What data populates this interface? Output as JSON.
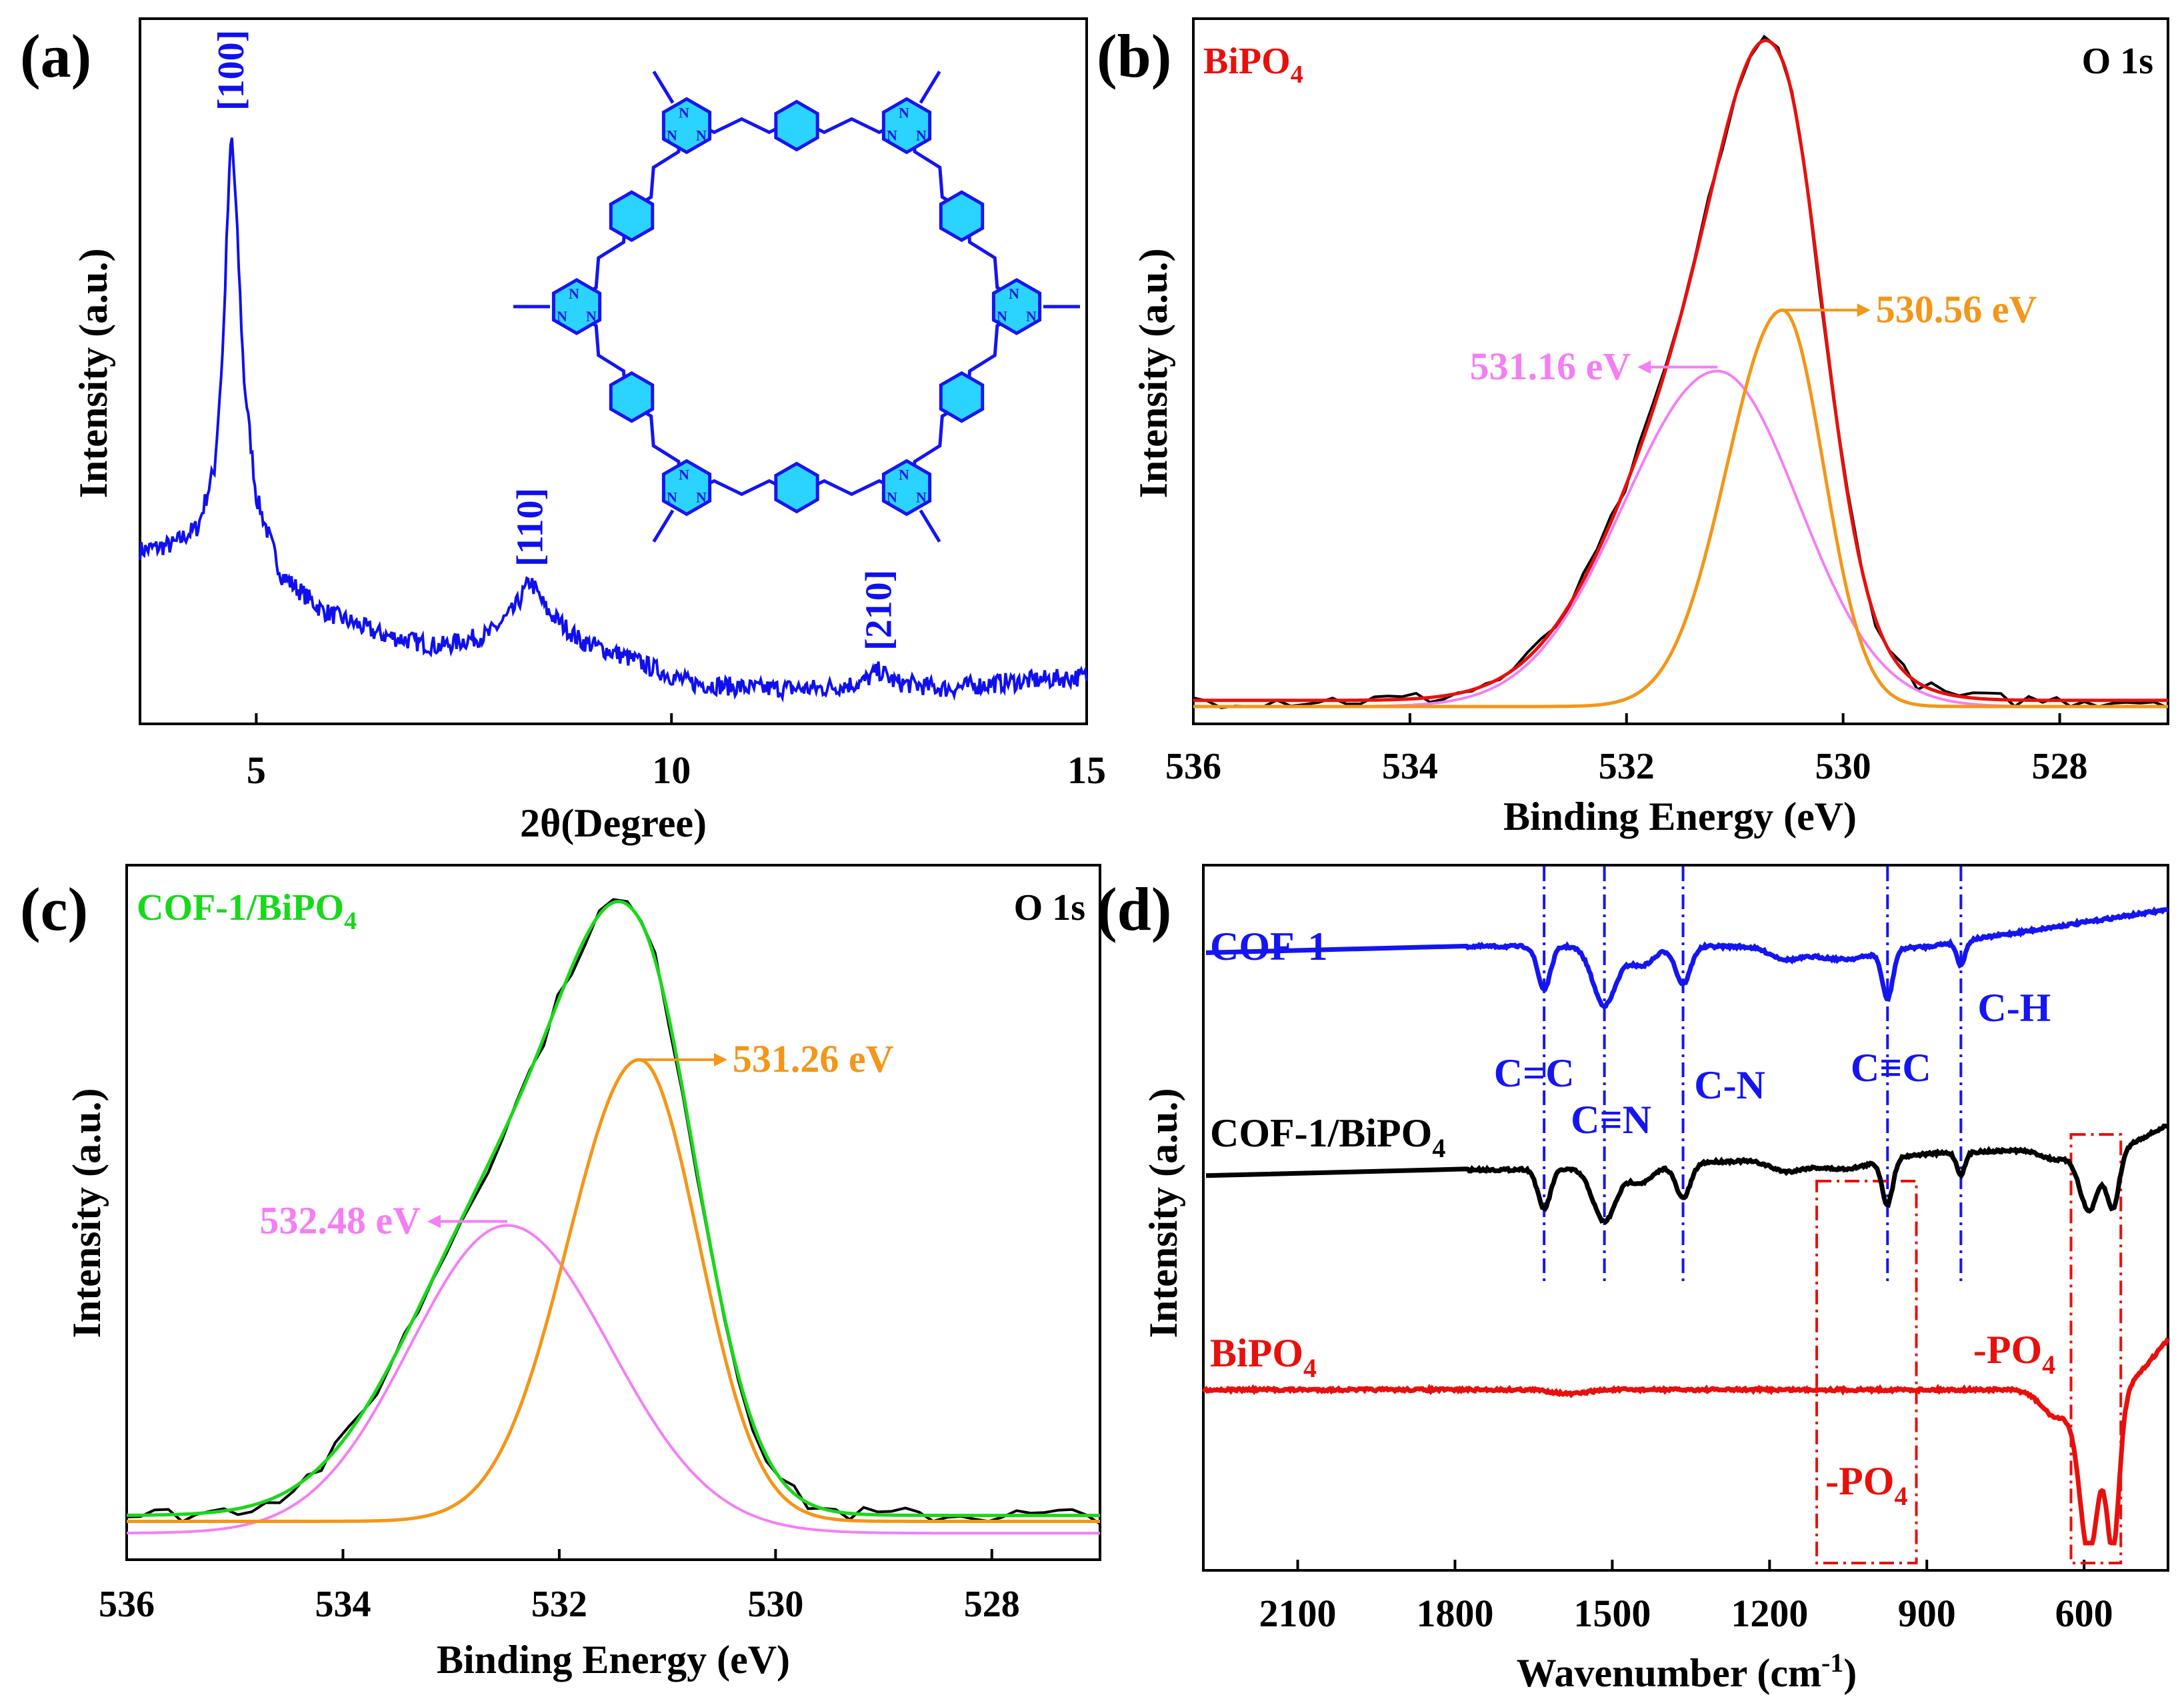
{
  "chart_data": [
    {
      "panel": "(a)",
      "type": "line",
      "xlabel": "2θ(Degree)",
      "ylabel": "Intensity (a.u.)",
      "xlim": [
        3.6,
        15
      ],
      "ylim": [
        0,
        100
      ],
      "xticks": [
        5,
        10,
        15
      ],
      "grid": false,
      "line_color": "#1010ee",
      "peaks": [
        {
          "label": "[100]",
          "x": 4.7,
          "height": 96
        },
        {
          "label": "[110]",
          "x": 8.3,
          "height": 20
        },
        {
          "label": "[210]",
          "x": 12.5,
          "height": 6
        }
      ],
      "series": [
        {
          "x": [
            3.6,
            4.0,
            4.3,
            4.5,
            4.6,
            4.65,
            4.7,
            4.75,
            4.85,
            5.0,
            5.3,
            5.8,
            6.5,
            7.2,
            7.8,
            8.1,
            8.3,
            8.5,
            8.9,
            9.5,
            10.2,
            11.0,
            11.8,
            12.3,
            12.5,
            12.7,
            13.3,
            14.0,
            15.0
          ],
          "y": [
            26,
            27,
            30,
            40,
            60,
            80,
            96,
            85,
            55,
            35,
            22,
            16,
            12,
            10,
            12,
            16,
            21,
            16,
            11,
            8,
            4,
            3,
            3,
            4,
            6,
            4,
            3,
            4,
            5
          ]
        }
      ],
      "inset": "hexagonal COF-1 framework structure (triazine nodes linked by vinylene–phenylene–vinylene)"
    },
    {
      "panel": "(b)",
      "type": "line",
      "title": "BiPO4",
      "title_display": "BiPO₄",
      "annotation": "O 1s",
      "xlabel": "Binding Energy (eV)",
      "ylabel": "Intensity (a.u.)",
      "xlim": [
        536,
        527
      ],
      "xticks": [
        536,
        534,
        532,
        530,
        528
      ],
      "series": [
        {
          "name": "measured",
          "color": "#000000",
          "peak_center": 530.72,
          "peak_height": 100
        },
        {
          "name": "fit envelope",
          "color": "#e8100c",
          "peak_center": 530.72,
          "peak_height": 100
        },
        {
          "name": "531.16 eV",
          "color": "#f47ef4",
          "peak_center": 531.16,
          "peak_height": 55
        },
        {
          "name": "530.56 eV",
          "color": "#f39619",
          "peak_center": 530.56,
          "peak_height": 65
        }
      ],
      "labels": [
        "531.16 eV",
        "530.56 eV"
      ]
    },
    {
      "panel": "(c)",
      "type": "line",
      "title": "COF-1/BiPO4",
      "title_display": "COF-1/BiPO₄",
      "annotation": "O 1s",
      "xlabel": "Binding Energy (eV)",
      "ylabel": "Intensity (a.u.)",
      "xlim": [
        536,
        527
      ],
      "xticks": [
        536,
        534,
        532,
        530,
        528
      ],
      "series": [
        {
          "name": "measured",
          "color": "#000000",
          "peak_center": 531.5,
          "peak_height": 100
        },
        {
          "name": "fit envelope",
          "color": "#19d81b",
          "peak_center": 531.5,
          "peak_height": 100
        },
        {
          "name": "532.48 eV",
          "color": "#f47ef4",
          "peak_center": 532.48,
          "peak_height": 52
        },
        {
          "name": "531.26 eV",
          "color": "#f39619",
          "peak_center": 531.26,
          "peak_height": 78
        }
      ],
      "labels": [
        "532.48 eV",
        "531.26 eV"
      ]
    },
    {
      "panel": "(d)",
      "type": "line",
      "xlabel": "Wavenumber (cm⁻¹)",
      "ylabel": "Intensity (a.u.)",
      "xlim": [
        2280,
        440
      ],
      "xticks": [
        2100,
        1800,
        1500,
        1200,
        900,
        600
      ],
      "series": [
        {
          "name": "COF-1",
          "color": "#1515f0"
        },
        {
          "name": "COF-1/BiPO4",
          "name_display": "COF-1/BiPO₄",
          "color": "#000000"
        },
        {
          "name": "BiPO4",
          "name_display": "BiPO₄",
          "color": "#e8100c"
        }
      ],
      "band_lines": [
        {
          "label": "C=C",
          "x": 1630
        },
        {
          "label": "C≡N",
          "x": 1515
        },
        {
          "label": "C-N",
          "x": 1365
        },
        {
          "label": "C≡C",
          "x": 975
        },
        {
          "label": "C-H",
          "x": 835
        }
      ],
      "boxes": [
        {
          "label": "-PO4",
          "label_display": "-PO₄",
          "x_from": 1110,
          "x_to": 920
        },
        {
          "label": "-PO4",
          "label_display": "-PO₄",
          "x_from": 625,
          "x_to": 530
        }
      ]
    }
  ]
}
